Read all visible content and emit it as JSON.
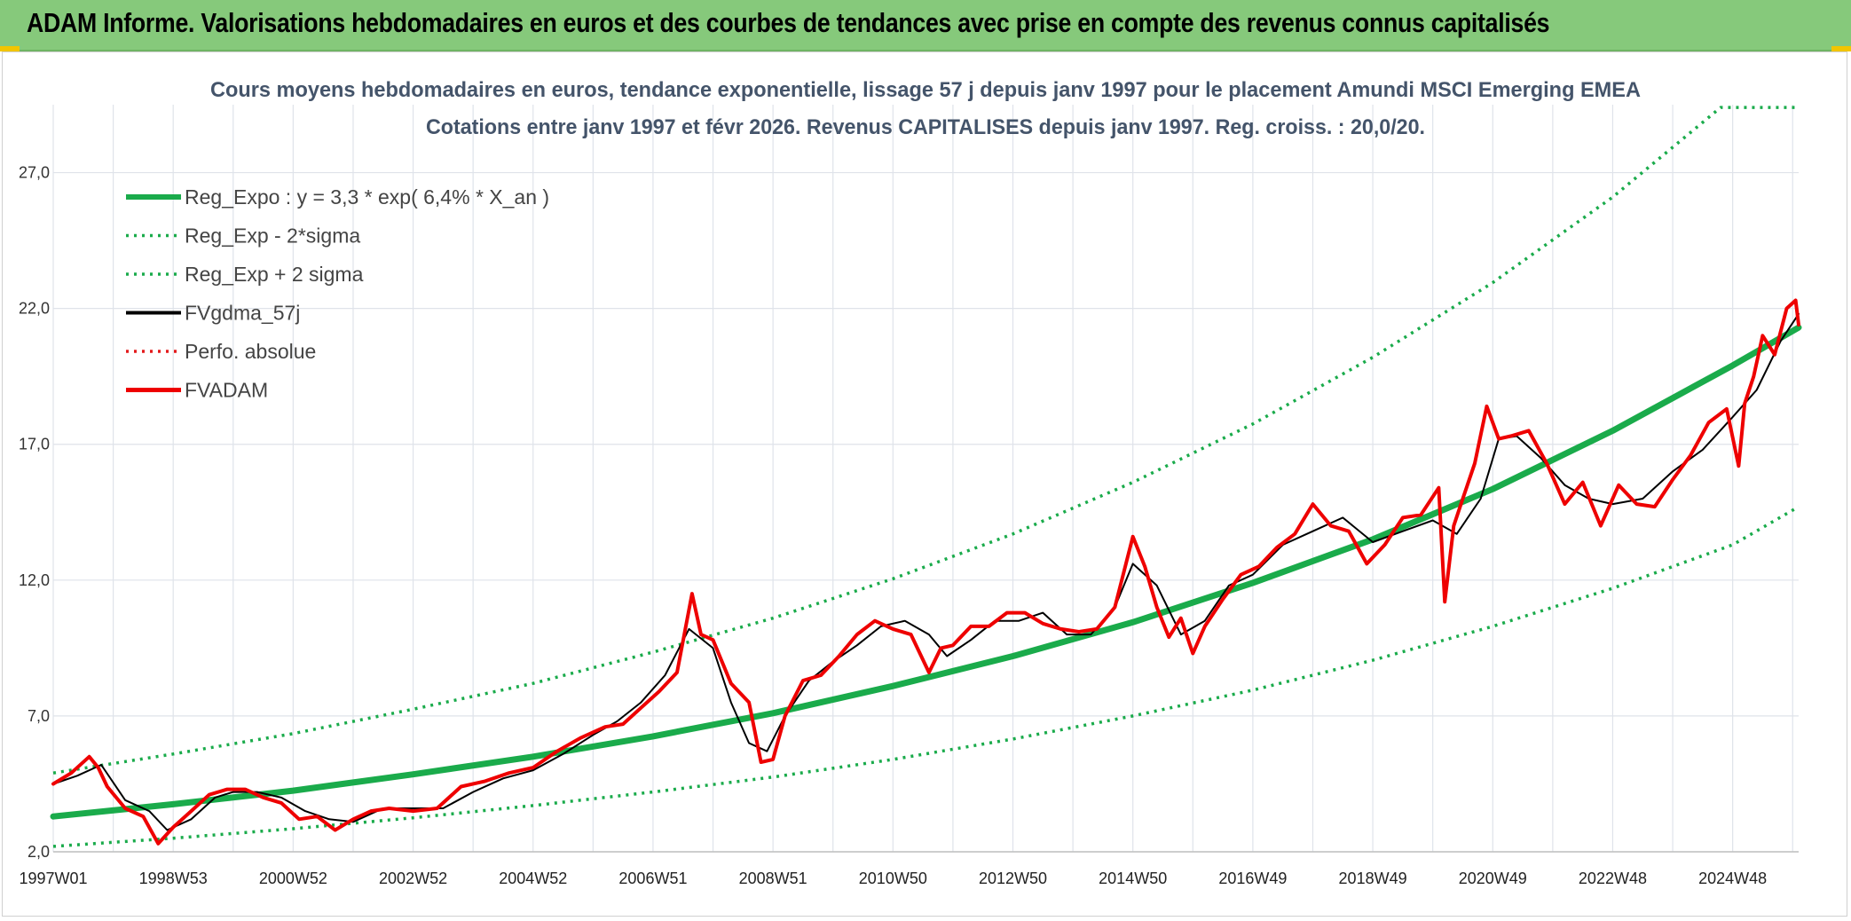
{
  "banner": {
    "title": "ADAM Informe. Valorisations hebdomadaires en euros et des courbes de tendances avec prise en compte des revenus connus capitalisés",
    "background": "#86c97b"
  },
  "chart_data": {
    "type": "line",
    "title": "Cours moyens hebdomadaires en euros, tendance exponentielle, lissage 57 j depuis janv 1997 pour le placement Amundi MSCI Emerging EMEA",
    "subtitle": "Cotations entre janv 1997 et févr 2026. Revenus CAPITALISES depuis janv 1997. Reg. croiss. : 20,0/20.",
    "xlabel": "",
    "ylabel": "",
    "ylim": [
      2.0,
      29.5
    ],
    "xlim": [
      1997.0,
      2026.1
    ],
    "grid": true,
    "legend_position": "top-left",
    "y_ticks": [
      "2,0",
      "7,0",
      "12,0",
      "17,0",
      "22,0",
      "27,0"
    ],
    "y_tick_values": [
      2,
      7,
      12,
      17,
      22,
      27
    ],
    "x_ticks": [
      {
        "label": "1997W01",
        "x": 1997.0
      },
      {
        "label": "1998W53",
        "x": 1999.0
      },
      {
        "label": "2000W52",
        "x": 2001.0
      },
      {
        "label": "2002W52",
        "x": 2003.0
      },
      {
        "label": "2004W52",
        "x": 2005.0
      },
      {
        "label": "2006W51",
        "x": 2007.0
      },
      {
        "label": "2008W51",
        "x": 2009.0
      },
      {
        "label": "2010W50",
        "x": 2011.0
      },
      {
        "label": "2012W50",
        "x": 2013.0
      },
      {
        "label": "2014W50",
        "x": 2015.0
      },
      {
        "label": "2016W49",
        "x": 2017.0
      },
      {
        "label": "2018W49",
        "x": 2019.0
      },
      {
        "label": "2020W49",
        "x": 2021.0
      },
      {
        "label": "2022W48",
        "x": 2023.0
      },
      {
        "label": "2024W48",
        "x": 2025.0
      }
    ],
    "series": [
      {
        "name": "Reg_Expo : y = 3,3 * exp( 6,4% *  X_an )",
        "color": "#1aab4b",
        "style": "solid-thick",
        "x": [
          1997.0,
          1999.0,
          2001.0,
          2003.0,
          2005.0,
          2007.0,
          2009.0,
          2011.0,
          2013.0,
          2015.0,
          2017.0,
          2019.0,
          2021.0,
          2023.0,
          2025.0,
          2026.1
        ],
        "y": [
          3.3,
          3.75,
          4.25,
          4.85,
          5.5,
          6.25,
          7.1,
          8.1,
          9.2,
          10.45,
          11.9,
          13.5,
          15.35,
          17.5,
          19.9,
          21.3
        ]
      },
      {
        "name": "Reg_Exp - 2*sigma",
        "color": "#1aab4b",
        "style": "dotted",
        "x": [
          1997.0,
          1999.0,
          2001.0,
          2003.0,
          2005.0,
          2007.0,
          2009.0,
          2011.0,
          2013.0,
          2015.0,
          2017.0,
          2019.0,
          2021.0,
          2023.0,
          2025.0,
          2026.1
        ],
        "y": [
          2.2,
          2.5,
          2.85,
          3.25,
          3.7,
          4.2,
          4.75,
          5.4,
          6.15,
          7.0,
          7.95,
          9.05,
          10.3,
          11.7,
          13.3,
          14.7
        ]
      },
      {
        "name": "Reg_Exp + 2 sigma",
        "color": "#1aab4b",
        "style": "dotted",
        "x": [
          1997.0,
          1999.0,
          2001.0,
          2003.0,
          2005.0,
          2007.0,
          2009.0,
          2011.0,
          2013.0,
          2015.0,
          2017.0,
          2019.0,
          2021.0,
          2023.0,
          2024.8,
          2025.0,
          2026.1
        ],
        "y": [
          4.9,
          5.6,
          6.35,
          7.25,
          8.2,
          9.35,
          10.6,
          12.05,
          13.7,
          15.6,
          17.75,
          20.2,
          22.95,
          26.1,
          29.4,
          29.4,
          29.4
        ]
      },
      {
        "name": "FVgdma_57j",
        "color": "#000000",
        "style": "solid-thin",
        "x": [
          1997.0,
          1997.4,
          1997.8,
          1998.2,
          1998.6,
          1998.9,
          1999.3,
          1999.7,
          2000.0,
          2000.4,
          2000.8,
          2001.2,
          2001.6,
          2002.0,
          2002.5,
          2003.0,
          2003.5,
          2004.0,
          2004.5,
          2005.0,
          2005.5,
          2006.0,
          2006.4,
          2006.8,
          2007.2,
          2007.6,
          2008.0,
          2008.3,
          2008.6,
          2008.9,
          2009.2,
          2009.6,
          2010.0,
          2010.4,
          2010.8,
          2011.2,
          2011.6,
          2011.9,
          2012.3,
          2012.7,
          2013.1,
          2013.5,
          2013.9,
          2014.3,
          2014.7,
          2015.0,
          2015.4,
          2015.8,
          2016.2,
          2016.6,
          2017.0,
          2017.5,
          2018.0,
          2018.5,
          2019.0,
          2019.5,
          2020.0,
          2020.4,
          2020.8,
          2021.1,
          2021.4,
          2021.8,
          2022.2,
          2022.6,
          2023.0,
          2023.5,
          2024.0,
          2024.5,
          2025.0,
          2025.4,
          2025.8,
          2026.1
        ],
        "y": [
          4.5,
          4.8,
          5.2,
          3.9,
          3.5,
          2.8,
          3.2,
          4.0,
          4.2,
          4.2,
          4.0,
          3.5,
          3.2,
          3.1,
          3.6,
          3.6,
          3.6,
          4.2,
          4.7,
          5.0,
          5.6,
          6.3,
          6.8,
          7.5,
          8.5,
          10.2,
          9.5,
          7.5,
          6.0,
          5.7,
          7.0,
          8.3,
          9.0,
          9.6,
          10.3,
          10.5,
          10.0,
          9.2,
          9.8,
          10.5,
          10.5,
          10.8,
          10.0,
          10.0,
          11.0,
          12.6,
          11.8,
          10.0,
          10.5,
          11.8,
          12.2,
          13.3,
          13.8,
          14.3,
          13.4,
          13.8,
          14.2,
          13.7,
          15.0,
          17.2,
          17.3,
          16.5,
          15.5,
          15.0,
          14.8,
          15.0,
          16.0,
          16.8,
          18.0,
          19.0,
          20.8,
          21.8
        ]
      },
      {
        "name": "Perfo. absolue",
        "color": "#e41a1c",
        "style": "dotted",
        "x": [],
        "y": []
      },
      {
        "name": "FVADAM",
        "color": "#ee0000",
        "style": "solid-thick",
        "x": [
          1997.0,
          1997.3,
          1997.6,
          1997.75,
          1997.9,
          1998.2,
          1998.5,
          1998.75,
          1999.0,
          1999.3,
          1999.6,
          1999.9,
          2000.2,
          2000.5,
          2000.8,
          2001.1,
          2001.4,
          2001.7,
          2002.0,
          2002.3,
          2002.6,
          2003.0,
          2003.4,
          2003.8,
          2004.2,
          2004.6,
          2005.0,
          2005.4,
          2005.8,
          2006.2,
          2006.5,
          2006.8,
          2007.1,
          2007.4,
          2007.65,
          2007.8,
          2008.0,
          2008.3,
          2008.6,
          2008.8,
          2009.0,
          2009.2,
          2009.5,
          2009.8,
          2010.1,
          2010.4,
          2010.7,
          2011.0,
          2011.3,
          2011.6,
          2011.8,
          2012.0,
          2012.3,
          2012.6,
          2012.9,
          2013.2,
          2013.5,
          2013.8,
          2014.1,
          2014.4,
          2014.7,
          2015.0,
          2015.2,
          2015.4,
          2015.6,
          2015.8,
          2016.0,
          2016.2,
          2016.5,
          2016.8,
          2017.1,
          2017.4,
          2017.7,
          2018.0,
          2018.3,
          2018.6,
          2018.9,
          2019.2,
          2019.5,
          2019.8,
          2020.1,
          2020.2,
          2020.35,
          2020.5,
          2020.7,
          2020.9,
          2021.1,
          2021.3,
          2021.6,
          2021.9,
          2022.2,
          2022.5,
          2022.8,
          2023.1,
          2023.4,
          2023.7,
          2024.0,
          2024.3,
          2024.6,
          2024.9,
          2025.1,
          2025.2,
          2025.35,
          2025.5,
          2025.7,
          2025.9,
          2026.05,
          2026.1
        ],
        "y": [
          4.5,
          4.9,
          5.5,
          5.1,
          4.4,
          3.6,
          3.3,
          2.3,
          2.9,
          3.5,
          4.1,
          4.3,
          4.3,
          4.0,
          3.8,
          3.2,
          3.3,
          2.8,
          3.2,
          3.5,
          3.6,
          3.5,
          3.6,
          4.4,
          4.6,
          4.9,
          5.1,
          5.7,
          6.2,
          6.6,
          6.7,
          7.3,
          7.9,
          8.6,
          11.5,
          10.0,
          9.8,
          8.2,
          7.5,
          5.3,
          5.4,
          7.0,
          8.3,
          8.5,
          9.2,
          10.0,
          10.5,
          10.2,
          10.0,
          8.6,
          9.5,
          9.6,
          10.3,
          10.3,
          10.8,
          10.8,
          10.4,
          10.2,
          10.1,
          10.2,
          11.0,
          13.6,
          12.5,
          11.0,
          9.9,
          10.6,
          9.3,
          10.3,
          11.3,
          12.2,
          12.5,
          13.2,
          13.7,
          14.8,
          14.0,
          13.8,
          12.6,
          13.3,
          14.3,
          14.4,
          15.4,
          11.2,
          14.0,
          15.0,
          16.3,
          18.4,
          17.2,
          17.3,
          17.5,
          16.3,
          14.8,
          15.6,
          14.0,
          15.5,
          14.8,
          14.7,
          15.7,
          16.6,
          17.8,
          18.3,
          16.2,
          18.5,
          19.5,
          21.0,
          20.3,
          22.0,
          22.3,
          21.4
        ]
      }
    ]
  }
}
